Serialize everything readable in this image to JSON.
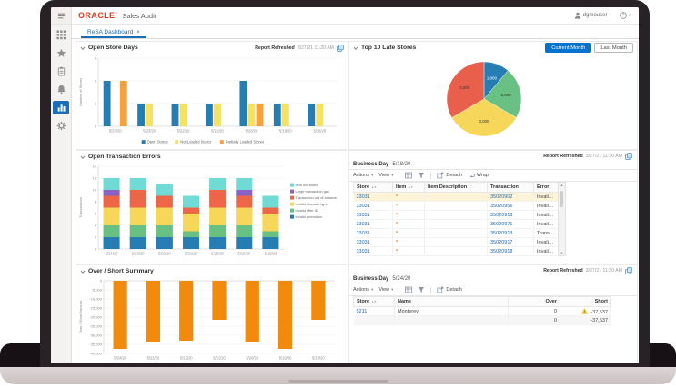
{
  "header": {
    "logo": "ORACLE’",
    "app_title": "Sales Audit",
    "user": "dgmouser",
    "help": "?"
  },
  "tab": {
    "label": "ReSA Dashboard",
    "close": "×"
  },
  "sidebar": {
    "items": [
      {
        "id": "apps",
        "icon": "grid-icon",
        "active": false
      },
      {
        "id": "favorites",
        "icon": "star-icon",
        "active": false
      },
      {
        "id": "tasks",
        "icon": "tasks-icon",
        "active": false
      },
      {
        "id": "notifications",
        "icon": "bell-icon",
        "active": false
      },
      {
        "id": "reports",
        "icon": "chart-icon",
        "active": true
      },
      {
        "id": "settings",
        "icon": "gear-icon",
        "active": false
      }
    ]
  },
  "report_refreshed": {
    "label": "Report Refreshed",
    "timestamp": "3/27/21 11:20 AM"
  },
  "buttons": {
    "current_month": "Current Month",
    "last_month": "Last Month",
    "selected": "Current Month"
  },
  "chart_data": [
    {
      "id": "open-store-days",
      "type": "bar",
      "title": "Open Store Days",
      "categories": [
        "5/24/20",
        "5/23/20",
        "5/22/20",
        "5/21/20",
        "5/20/20",
        "5/19/20",
        "5/18/20"
      ],
      "series": [
        {
          "name": "Open Stores",
          "color": "#267db3",
          "values": [
            2,
            1,
            1,
            1,
            2,
            1,
            1
          ]
        },
        {
          "name": "Not Loaded Stores",
          "color": "#f5e262",
          "values": [
            0,
            1,
            1,
            1,
            1,
            1,
            1
          ]
        },
        {
          "name": "Partially Loaded Stores",
          "color": "#f5a23c",
          "values": [
            2,
            0,
            0,
            0,
            1,
            0,
            0
          ]
        }
      ],
      "xlabel": "",
      "ylabel": "Number of Stores",
      "ylim": [
        0,
        3
      ],
      "yticks": [
        0,
        1,
        2,
        3
      ],
      "grid": true,
      "legend_position": "bottom"
    },
    {
      "id": "top-10-late-stores",
      "type": "pie",
      "title": "Top 10 Late Stores",
      "slices": [
        {
          "label": "1,000",
          "value": 1000,
          "color": "#267db3",
          "label_color": "#ffffff"
        },
        {
          "label": "2,000",
          "value": 2000,
          "color": "#68c182",
          "label_color": "#333333"
        },
        {
          "label": "3,000",
          "value": 3000,
          "color": "#f6d75a",
          "label_color": "#333333"
        },
        {
          "label": "3,000",
          "value": 3000,
          "color": "#e8604c",
          "label_color": "#333333"
        }
      ],
      "legend_position": "none"
    },
    {
      "id": "open-transaction-errors",
      "type": "bar",
      "stacked": true,
      "title": "Open Transaction Errors",
      "categories": [
        "5/24/20",
        "5/23/20",
        "5/22/20",
        "5/21/20",
        "5/20/20",
        "5/19/20",
        "5/18/20"
      ],
      "series": [
        {
          "name": "Invalid promotion",
          "color": "#267db3",
          "values": [
            2,
            2,
            2,
            2,
            2,
            2,
            2
          ]
        },
        {
          "name": "Invalid offer ID",
          "color": "#68c182",
          "values": [
            2,
            2,
            2,
            1,
            2,
            2,
            1
          ]
        },
        {
          "name": "Invalid discount type",
          "color": "#f6d75a",
          "values": [
            3,
            3,
            3,
            3,
            3,
            3,
            3
          ]
        },
        {
          "name": "Transaction out of balance",
          "color": "#ed6647",
          "values": [
            2,
            3,
            2,
            1,
            3,
            2,
            1
          ]
        },
        {
          "name": "Large transaction gap",
          "color": "#8a63c9",
          "values": [
            1,
            0,
            0,
            0,
            0,
            1,
            0
          ]
        },
        {
          "name": "Item not found",
          "color": "#6fdbd4",
          "values": [
            2,
            2,
            2,
            2,
            2,
            2,
            2
          ]
        }
      ],
      "xlabel": "",
      "ylabel": "Transactions",
      "ylim": [
        0,
        14
      ],
      "yticks": [
        0,
        2,
        4,
        6,
        8,
        10,
        12,
        14
      ],
      "grid": true,
      "legend_position": "right"
    },
    {
      "id": "over-short-summary",
      "type": "bar",
      "title": "Over / Short Summary",
      "categories": [
        "5/24/20",
        "5/23/20",
        "5/22/20",
        "5/21/20",
        "5/20/20",
        "5/19/20",
        "5/18/20"
      ],
      "series": [
        {
          "name": "Over / Short",
          "color": "#f28a0e",
          "values": [
            -37537,
            -33500,
            -33000,
            -21500,
            -33500,
            -37500,
            -21500
          ]
        }
      ],
      "xlabel": "",
      "ylabel": "Over / Short Amount",
      "ylim": [
        -40000,
        0
      ],
      "yticks": [
        0,
        -5000,
        -10000,
        -15000,
        -20000,
        -25000,
        -30000,
        -35000,
        -40000
      ],
      "grid": true,
      "legend_position": "none"
    }
  ],
  "tables": {
    "transaction_errors": {
      "business_day_label": "Business Day",
      "business_day": "5/18/20",
      "toolbar": {
        "actions": "Actions",
        "view": "View",
        "detach": "Detach",
        "wrap": "Wrap"
      },
      "columns": [
        "Store",
        "Item",
        "Item Description",
        "Transaction",
        "Error"
      ],
      "rows": [
        {
          "store": "33031",
          "item": "*",
          "item_description": "",
          "transaction": "35020902",
          "error": "Invalid discount ..."
        },
        {
          "store": "33031",
          "item": "*",
          "item_description": "",
          "transaction": "35020956",
          "error": "Invalid promotion"
        },
        {
          "store": "33031",
          "item": "*",
          "item_description": "",
          "transaction": "35020913",
          "error": "Invalid promotion"
        },
        {
          "store": "33031",
          "item": "*",
          "item_description": "",
          "transaction": "35020971",
          "error": "Invalid offer ID"
        },
        {
          "store": "33031",
          "item": "*",
          "item_description": "",
          "transaction": "35020913",
          "error": "Transaction out ..."
        },
        {
          "store": "33031",
          "item": "*",
          "item_description": "",
          "transaction": "35020917",
          "error": "Invalid discount ..."
        },
        {
          "store": "33031",
          "item": "*",
          "item_description": "",
          "transaction": "35020918",
          "error": "Invalid discount ..."
        }
      ]
    },
    "over_short": {
      "business_day_label": "Business Day",
      "business_day": "5/24/20",
      "toolbar": {
        "actions": "Actions",
        "view": "View",
        "detach": "Detach"
      },
      "columns": [
        "Store",
        "Name",
        "Over",
        "Short"
      ],
      "rows": [
        {
          "store": "5211",
          "name": "Monterey",
          "over": "0",
          "short": "-37,537",
          "warning": true
        }
      ],
      "total": {
        "over": "0",
        "short": "-37,537"
      }
    }
  }
}
